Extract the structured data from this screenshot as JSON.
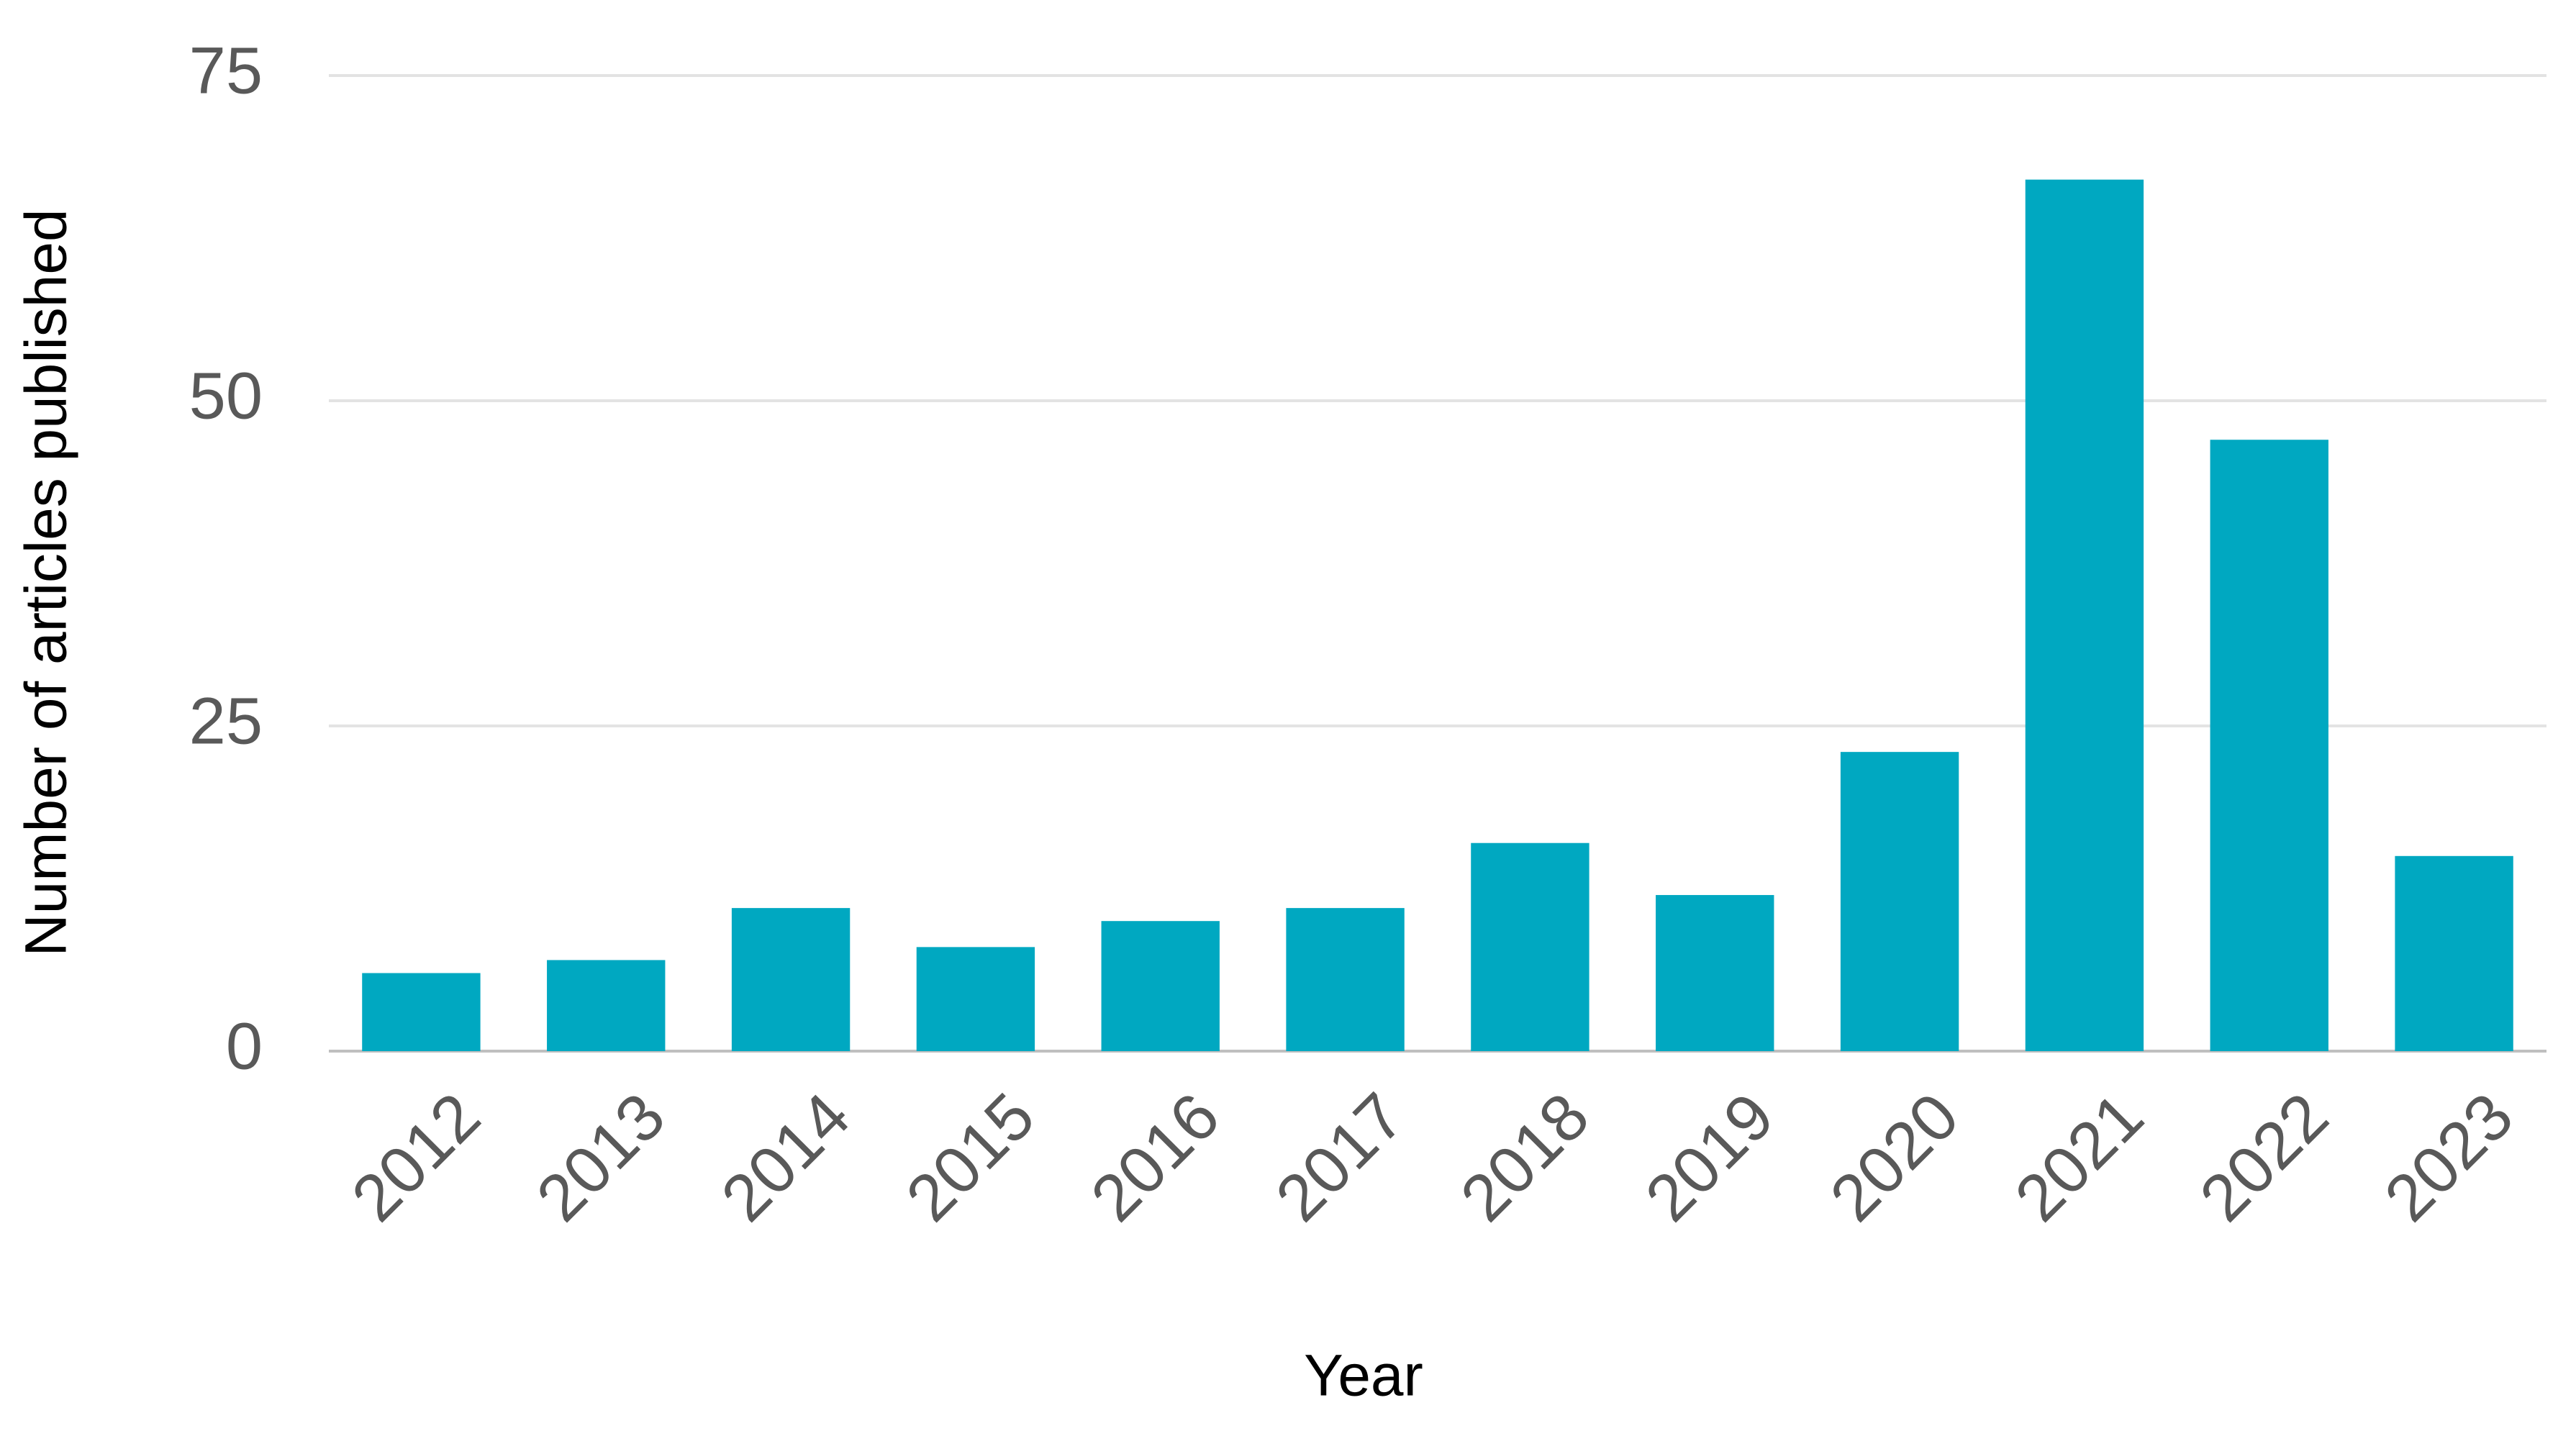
{
  "chart_data": {
    "type": "bar",
    "categories": [
      "2012",
      "2013",
      "2014",
      "2015",
      "2016",
      "2017",
      "2018",
      "2019",
      "2020",
      "2021",
      "2022",
      "2023"
    ],
    "values": [
      6,
      7,
      11,
      8,
      10,
      11,
      16,
      12,
      23,
      67,
      47,
      15
    ],
    "color": "#00a8c1",
    "x_label": "Year",
    "y_label": "Number of articles published",
    "ylim": [
      0,
      75
    ],
    "yticks": [
      0,
      25,
      50,
      75
    ],
    "grid": true
  }
}
